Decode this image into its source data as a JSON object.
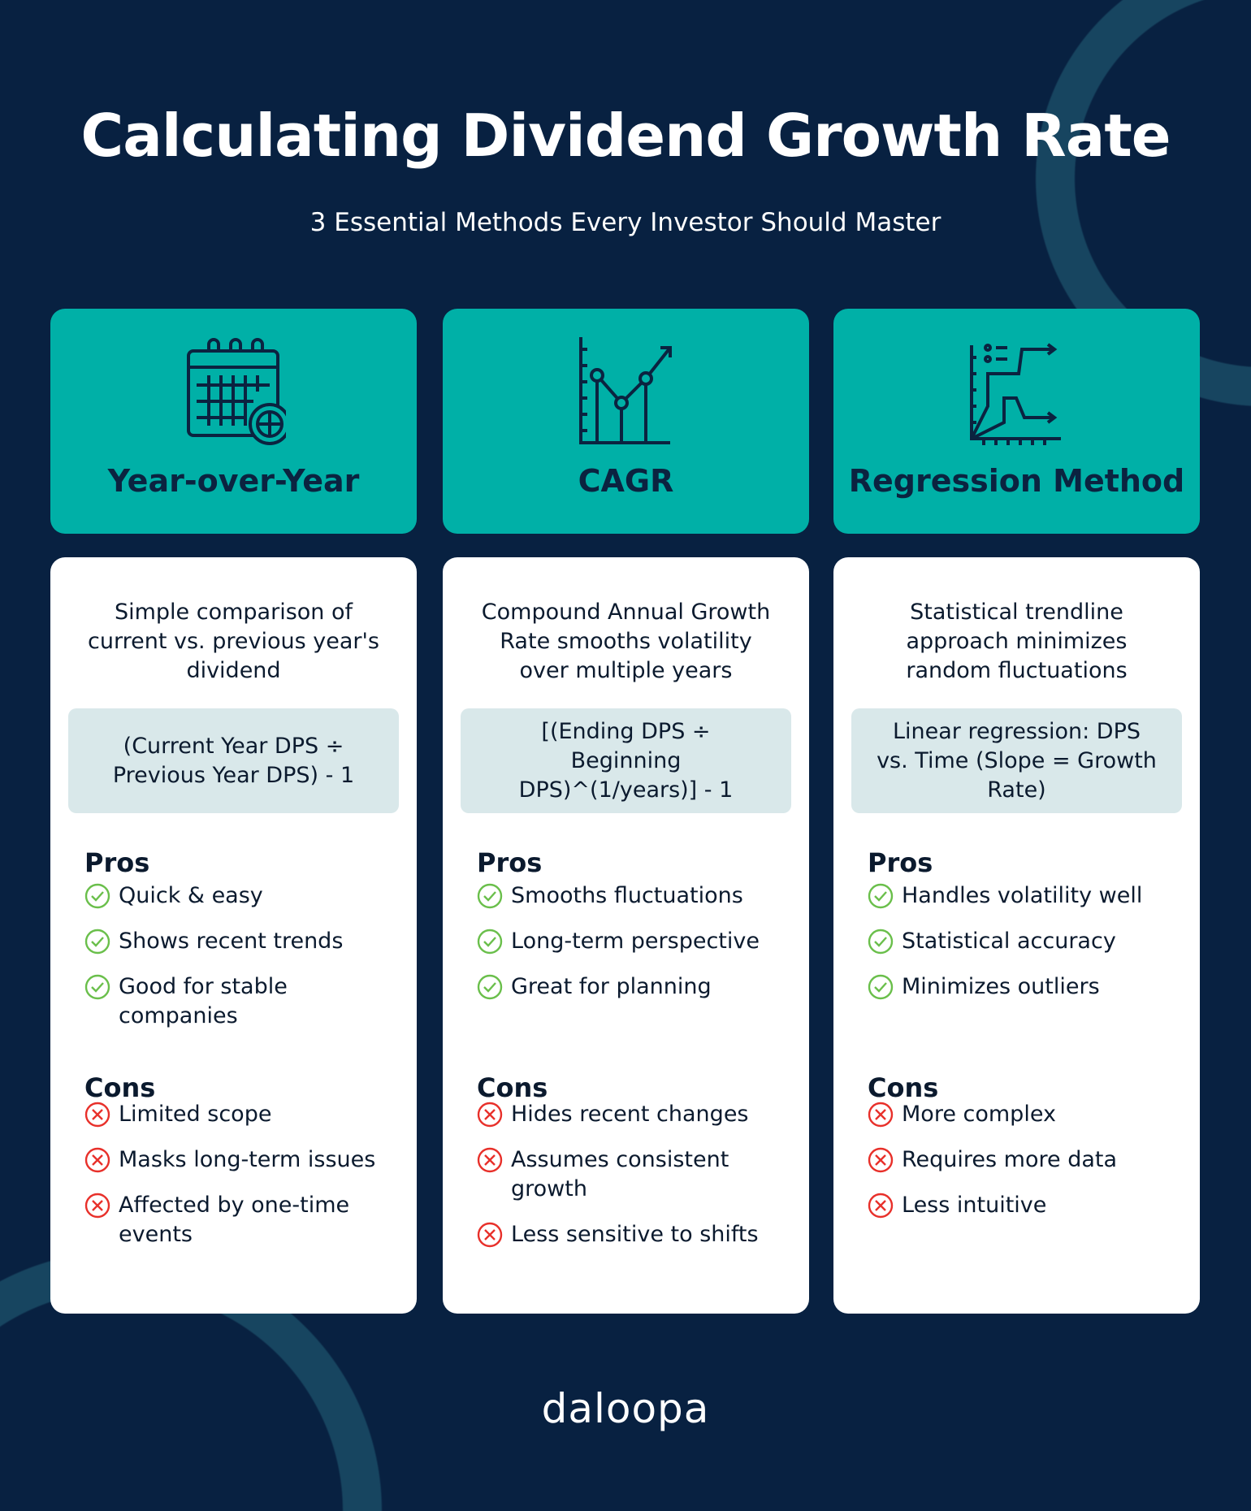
{
  "title": "Calculating Dividend Growth Rate",
  "subtitle": "3 Essential Methods Every Investor Should Master",
  "colors": {
    "background": "#082141",
    "header": "#00b0a7",
    "formula_bg": "#d9e8ea",
    "pro": "#6abf4b",
    "con": "#e8302a"
  },
  "methods": [
    {
      "title": "Year-over-Year",
      "icon": "calendar-globe-icon",
      "description": "Simple comparison of current vs. previous year's dividend",
      "formula": "(Current Year DPS ÷ Previous Year DPS) - 1",
      "pros_label": "Pros",
      "pros": [
        "Quick & easy",
        "Shows recent trends",
        "Good for stable companies"
      ],
      "cons_label": "Cons",
      "cons": [
        "Limited scope",
        "Masks long-term issues",
        "Affected by one-time events"
      ]
    },
    {
      "title": "CAGR",
      "icon": "line-chart-icon",
      "description": "Compound Annual Growth Rate smooths volatility over multiple years",
      "formula": "[(Ending DPS ÷ Beginning DPS)^(1/years)] - 1",
      "pros_label": "Pros",
      "pros": [
        "Smooths fluctuations",
        "Long-term perspective",
        "Great for planning"
      ],
      "cons_label": "Cons",
      "cons": [
        "Hides recent changes",
        "Assumes consistent growth",
        "Less sensitive to shifts"
      ]
    },
    {
      "title": "Regression Method",
      "icon": "trend-chart-icon",
      "description": "Statistical trendline approach minimizes random fluctuations",
      "formula": "Linear regression: DPS vs. Time (Slope = Growth Rate)",
      "pros_label": "Pros",
      "pros": [
        "Handles volatility well",
        "Statistical accuracy",
        "Minimizes outliers"
      ],
      "cons_label": "Cons",
      "cons": [
        "More complex",
        "Requires more data",
        "Less intuitive"
      ]
    }
  ],
  "logo": "daloopa"
}
